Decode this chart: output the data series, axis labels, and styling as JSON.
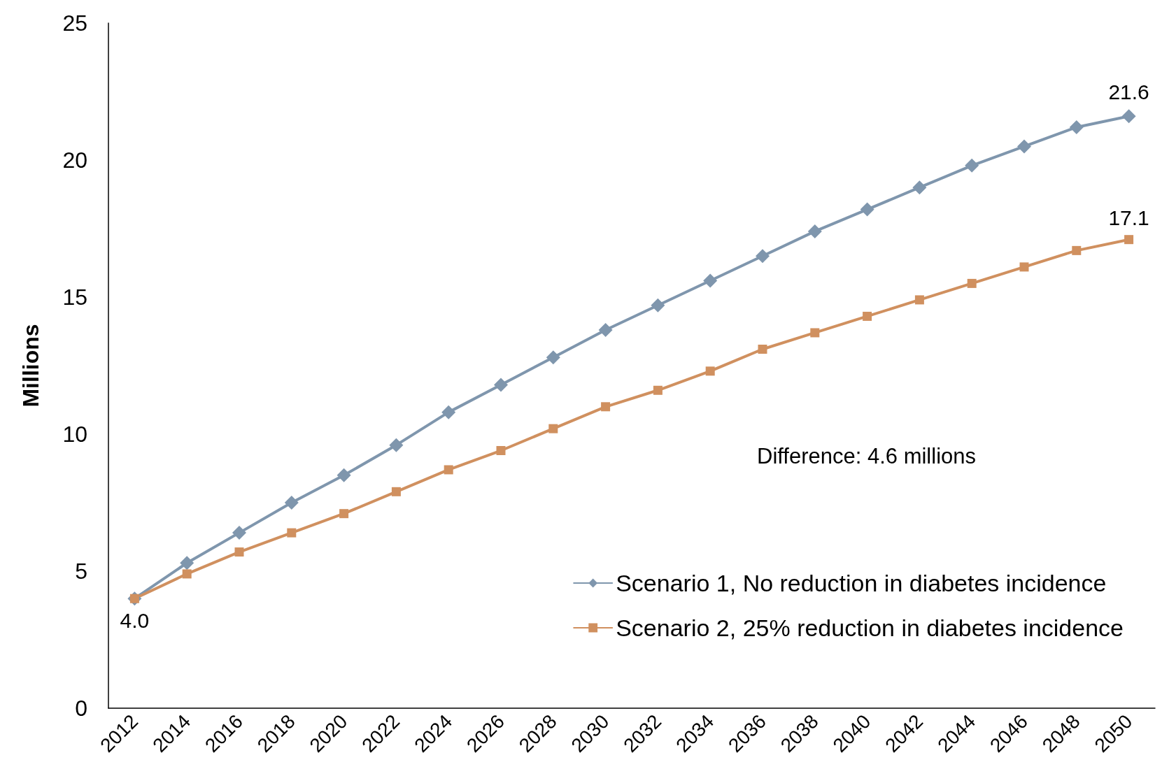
{
  "chart_data": {
    "type": "line",
    "ylabel": "Millions",
    "categories": [
      "2012",
      "2014",
      "2016",
      "2018",
      "2020",
      "2022",
      "2024",
      "2026",
      "2028",
      "2030",
      "2032",
      "2034",
      "2036",
      "2038",
      "2040",
      "2042",
      "2044",
      "2046",
      "2048",
      "2050"
    ],
    "series": [
      {
        "name": "Scenario 1, No reduction in diabetes incidence",
        "color": "#7f96ad",
        "marker": "diamond",
        "values": [
          4.0,
          5.3,
          6.4,
          7.5,
          8.5,
          9.6,
          10.8,
          11.8,
          12.8,
          13.8,
          14.7,
          15.6,
          16.5,
          17.4,
          18.2,
          19.0,
          19.8,
          20.5,
          21.2,
          21.6
        ],
        "value_labels": [
          null,
          null,
          null,
          null,
          null,
          null,
          null,
          null,
          null,
          null,
          null,
          null,
          null,
          null,
          null,
          null,
          null,
          null,
          null,
          "21.6"
        ]
      },
      {
        "name": "Scenario 2, 25% reduction in diabetes incidence",
        "color": "#d0905f",
        "marker": "square",
        "values": [
          4.0,
          4.9,
          5.7,
          6.4,
          7.1,
          7.9,
          8.7,
          9.4,
          10.2,
          11.0,
          11.6,
          12.3,
          13.1,
          13.7,
          14.3,
          14.9,
          15.5,
          16.1,
          16.7,
          17.1
        ],
        "value_labels": [
          "4.0",
          null,
          null,
          null,
          null,
          null,
          null,
          null,
          null,
          null,
          null,
          null,
          null,
          null,
          null,
          null,
          null,
          null,
          null,
          "17.1"
        ]
      }
    ],
    "ylim": [
      0,
      25
    ],
    "yticks": [
      0,
      5,
      10,
      15,
      20,
      25
    ],
    "grid": false,
    "legend": "bottom right",
    "annotations": [
      "Difference: 4.6 millions"
    ]
  }
}
